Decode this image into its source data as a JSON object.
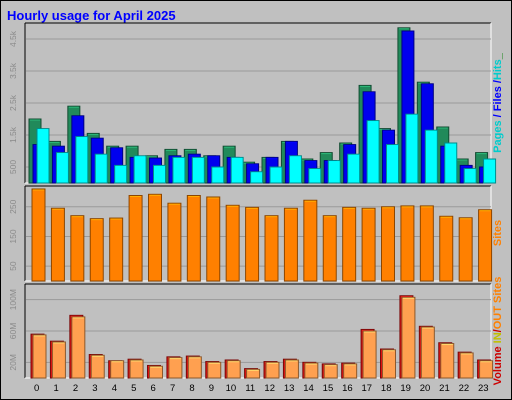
{
  "chart_data": {
    "title": "Hourly usage for April 2025",
    "categories": [
      "0",
      "1",
      "2",
      "3",
      "4",
      "5",
      "6",
      "7",
      "8",
      "9",
      "10",
      "11",
      "12",
      "13",
      "14",
      "15",
      "16",
      "17",
      "18",
      "19",
      "20",
      "21",
      "22",
      "23"
    ],
    "panels": [
      {
        "id": "requests",
        "type": "bar",
        "ylim": [
          0,
          5000
        ],
        "ticks": [
          {
            "value": 500,
            "label": "500"
          },
          {
            "value": 1500,
            "label": "1.5k"
          },
          {
            "value": 2500,
            "label": "2.5k"
          },
          {
            "value": 3500,
            "label": "3.5k"
          },
          {
            "value": 4500,
            "label": "4.5k"
          }
        ],
        "legend": [
          {
            "text": "Pages",
            "color": "#00cccc"
          },
          {
            "text": " / ",
            "color": "#0000ff"
          },
          {
            "text": "Files",
            "color": "#0000ff"
          },
          {
            "text": " /",
            "color": "#0000ff"
          },
          {
            "text": "Hits",
            "color": "#00cccc"
          },
          {
            "text": "_",
            "color": "#008000"
          }
        ],
        "series": [
          {
            "name": "Hits",
            "color": "#218a5a",
            "values": [
              2000,
              1300,
              2400,
              1550,
              1150,
              1150,
              850,
              1050,
              1050,
              850,
              1150,
              650,
              800,
              1300,
              750,
              950,
              1250,
              3050,
              1700,
              4850,
              3150,
              1750,
              750,
              950
            ]
          },
          {
            "name": "Files",
            "color": "#0000ee",
            "values": [
              1200,
              1150,
              2100,
              1400,
              1100,
              800,
              780,
              850,
              900,
              850,
              800,
              600,
              800,
              1300,
              700,
              700,
              1200,
              2850,
              1650,
              4750,
              3100,
              1150,
              550,
              500
            ]
          },
          {
            "name": "Pages",
            "color": "#00ffff",
            "values": [
              1700,
              950,
              1450,
              900,
              550,
              850,
              550,
              800,
              800,
              500,
              800,
              350,
              500,
              850,
              450,
              700,
              900,
              1950,
              1200,
              2150,
              1650,
              1250,
              450,
              750
            ]
          }
        ]
      },
      {
        "id": "sites",
        "type": "bar",
        "ylim": [
          0,
          320
        ],
        "ticks": [
          {
            "value": 50,
            "label": "50"
          },
          {
            "value": 150,
            "label": "150"
          },
          {
            "value": 250,
            "label": "250"
          }
        ],
        "legend": [
          {
            "text": "Sites",
            "color": "#ff8000"
          }
        ],
        "series": [
          {
            "name": "Sites",
            "color": "#ff8000",
            "values": [
              310,
              245,
              220,
              210,
              212,
              288,
              292,
              262,
              288,
              283,
              255,
              248,
              220,
              245,
              272,
              220,
              248,
              245,
              250,
              253,
              253,
              218,
              213,
              240
            ]
          }
        ]
      },
      {
        "id": "volume",
        "type": "bar",
        "ylim": [
          0,
          120
        ],
        "ticks": [
          {
            "value": 20,
            "label": "20M"
          },
          {
            "value": 60,
            "label": "60M"
          },
          {
            "value": 100,
            "label": "100M"
          }
        ],
        "legend": [
          {
            "text": "Volume",
            "color": "#cc0000"
          },
          {
            "text": " ",
            "color": "#cc0000"
          },
          {
            "text": "IN",
            "color": "#c0c000"
          },
          {
            "text": "/",
            "color": "#cc0000"
          },
          {
            "text": "OUT",
            "color": "#ff8000"
          },
          {
            "text": " ",
            "color": "#cc0000"
          },
          {
            "text": "Sites",
            "color": "#ff8000"
          }
        ],
        "series": [
          {
            "name": "Volume",
            "color": "#dd1111",
            "values": [
              56,
              47,
              80,
              30,
              22,
              24,
              16,
              27,
              28,
              21,
              23,
              12,
              21,
              24,
              20,
              18,
              19,
              62,
              37,
              105,
              66,
              45,
              33,
              23
            ]
          },
          {
            "name": "OUT",
            "color": "#ffa050",
            "values": [
              55,
              46,
              78,
              29,
              22,
              23,
              15,
              26,
              27,
              20,
              22,
              11,
              20,
              23,
              19,
              17,
              18,
              60,
              36,
              103,
              65,
              44,
              32,
              22
            ]
          }
        ]
      }
    ]
  }
}
